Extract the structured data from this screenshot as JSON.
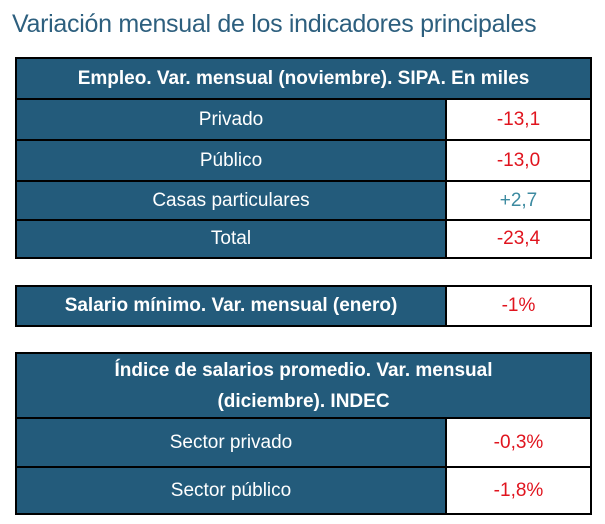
{
  "title": "Variación mensual de los indicadores principales",
  "empleo": {
    "header": "Empleo. Var. mensual (noviembre). SIPA. En miles",
    "rows": [
      {
        "label": "Privado",
        "value": "-13,1"
      },
      {
        "label": "Público",
        "value": "-13,0"
      },
      {
        "label": "Casas particulares",
        "value": "+2,7"
      },
      {
        "label": "Total",
        "value": "-23,4"
      }
    ]
  },
  "salario_minimo": {
    "label": "Salario mínimo. Var. mensual (enero)",
    "value": "-1%"
  },
  "indice_salarios": {
    "header": "Índice de salarios promedio.  Var. mensual (diciembre). INDEC",
    "rows": [
      {
        "label": "Sector privado",
        "value": "-0,3%"
      },
      {
        "label": "Sector público",
        "value": "-1,8%"
      }
    ]
  },
  "colors": {
    "header_bg": "#235b7b",
    "negative": "#e0141e",
    "positive": "#3c8aa0"
  }
}
